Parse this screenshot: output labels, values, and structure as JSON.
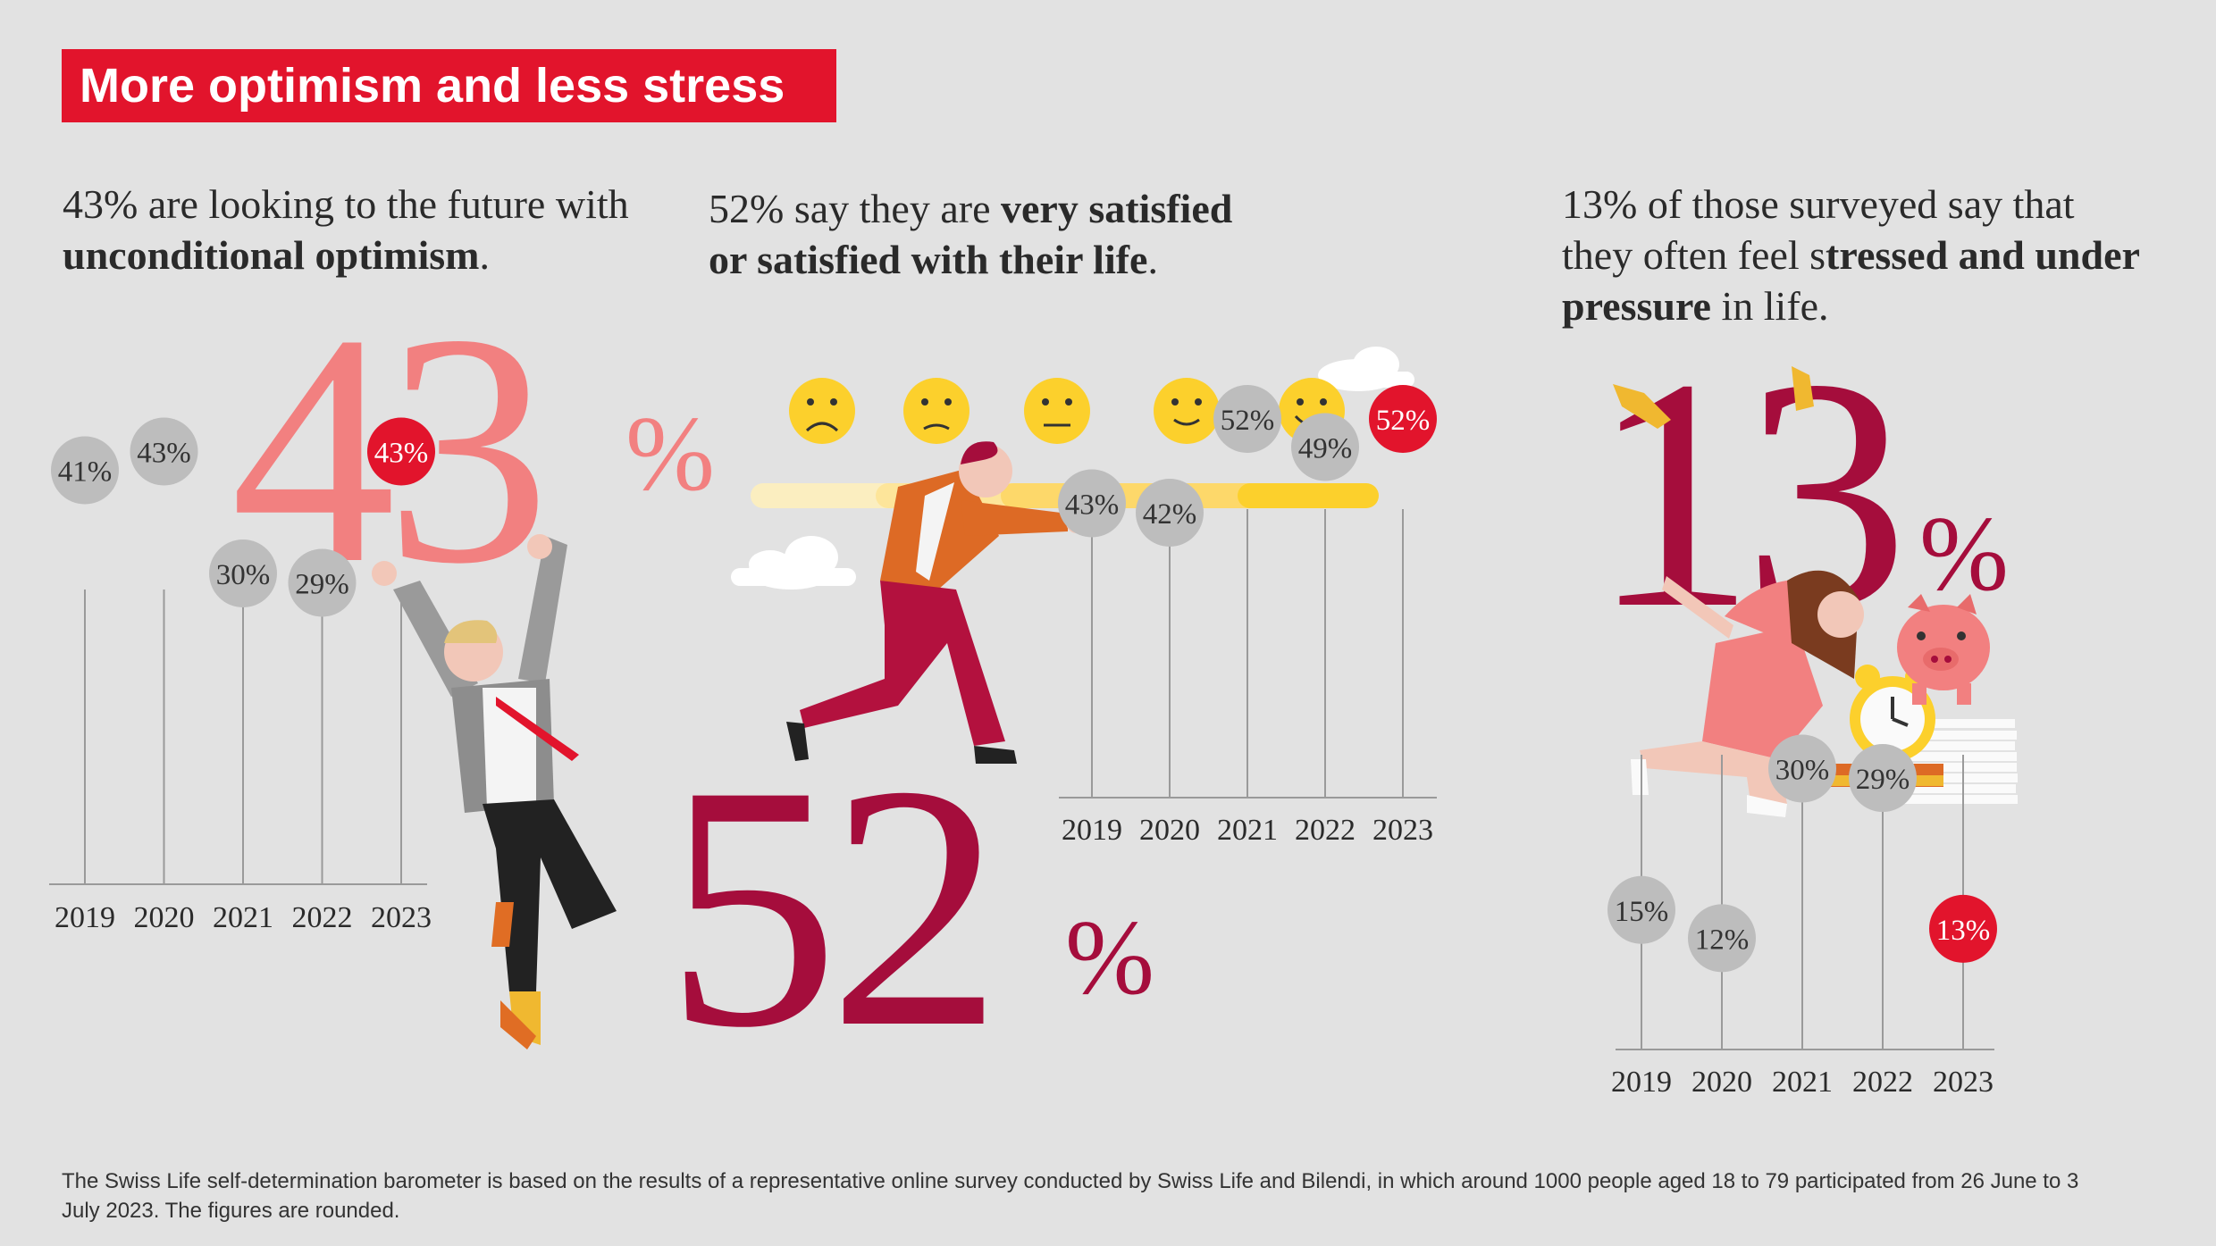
{
  "title": "More optimism and less stress",
  "panels": [
    {
      "intro": {
        "before": "43% are looking to the future with ",
        "bold": "unconditional optimism",
        "after": "."
      },
      "big_number": "43",
      "big_unit": "%"
    },
    {
      "intro": {
        "before": "52% say they are ",
        "bold": "very satisfied or satisfied with their life",
        "after": "."
      },
      "big_number": "52",
      "big_unit": "%"
    },
    {
      "intro": {
        "before": "13% of those surveyed say that they often feel s",
        "bold": "tressed and under pressure",
        "after": " in life."
      },
      "big_number": "13",
      "big_unit": "%"
    }
  ],
  "chart_data": [
    {
      "type": "scatter",
      "categories": [
        "2019",
        "2020",
        "2021",
        "2022",
        "2023"
      ],
      "values": [
        41,
        43,
        30,
        29,
        43
      ],
      "labels": [
        "41%",
        "43%",
        "30%",
        "29%",
        "43%"
      ],
      "highlight": "2023"
    },
    {
      "type": "scatter",
      "categories": [
        "2019",
        "2020",
        "2021",
        "2022",
        "2023"
      ],
      "values": [
        43,
        42,
        52,
        49,
        52
      ],
      "labels": [
        "43%",
        "42%",
        "52%",
        "49%",
        "52%"
      ],
      "highlight": "2023"
    },
    {
      "type": "scatter",
      "categories": [
        "2019",
        "2020",
        "2021",
        "2022",
        "2023"
      ],
      "values": [
        15,
        12,
        30,
        29,
        13
      ],
      "labels": [
        "15%",
        "12%",
        "30%",
        "29%",
        "13%"
      ],
      "highlight": "2023"
    }
  ],
  "colors": {
    "accent_red": "#e2142c",
    "coral": "#f28080",
    "crimson": "#a50d3c",
    "bubble_grey": "#bdbdbd",
    "yellow": "#fcd02c"
  },
  "footnote": "The Swiss Life self-determination barometer is based on the results of a representative online survey conducted by Swiss Life and Bilendi, in which around 1000 people aged 18 to 79 participated from 26 June to 3 July 2023. The figures are rounded."
}
